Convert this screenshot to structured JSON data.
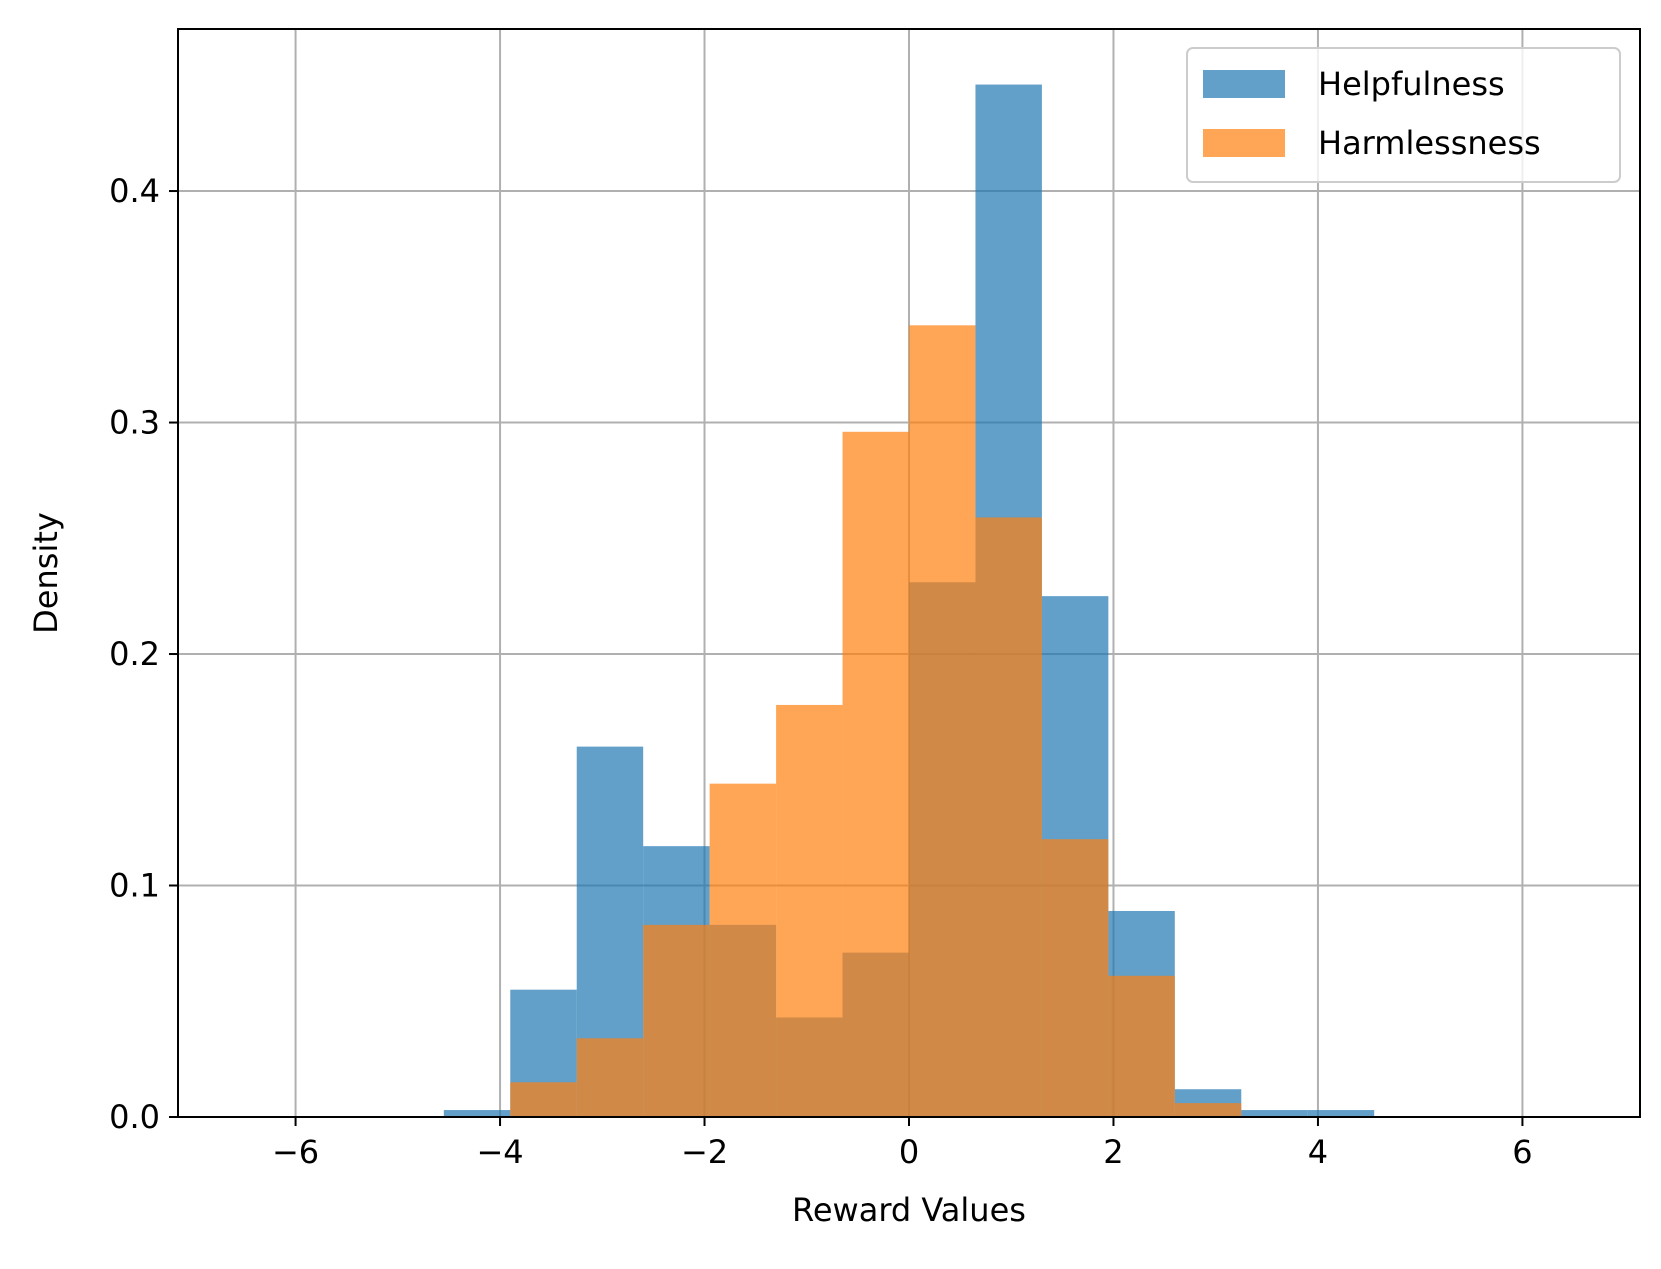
{
  "chart_data": {
    "type": "bar",
    "histogram": true,
    "xlabel": "Reward Values",
    "ylabel": "Density",
    "xlim": [
      -7.15,
      7.15
    ],
    "ylim": [
      0,
      0.47
    ],
    "xticks": [
      -6,
      -4,
      -2,
      0,
      2,
      4,
      6
    ],
    "xtick_labels": [
      "−6",
      "−4",
      "−2",
      "0",
      "2",
      "4",
      "6"
    ],
    "yticks": [
      0.0,
      0.1,
      0.2,
      0.3,
      0.4
    ],
    "ytick_labels": [
      "0.0",
      "0.1",
      "0.2",
      "0.3",
      "0.4"
    ],
    "grid": true,
    "legend_position": "top-right",
    "bin_edges": [
      -4.55,
      -3.9,
      -3.25,
      -2.6,
      -1.95,
      -1.3,
      -0.65,
      0.0,
      0.65,
      1.3,
      1.95,
      2.6,
      3.25,
      3.9,
      4.55
    ],
    "series": [
      {
        "name": "Helpfulness",
        "color": "#1f77b4",
        "alpha": 0.7,
        "values": [
          0.003,
          0.055,
          0.16,
          0.117,
          0.083,
          0.043,
          0.071,
          0.231,
          0.446,
          0.225,
          0.089,
          0.012,
          0.003,
          0.003
        ]
      },
      {
        "name": "Harmlessness",
        "color": "#ff7f0e",
        "alpha": 0.7,
        "values": [
          0.0,
          0.015,
          0.034,
          0.083,
          0.144,
          0.178,
          0.296,
          0.342,
          0.259,
          0.12,
          0.061,
          0.006,
          0.0,
          0.0
        ]
      }
    ]
  }
}
